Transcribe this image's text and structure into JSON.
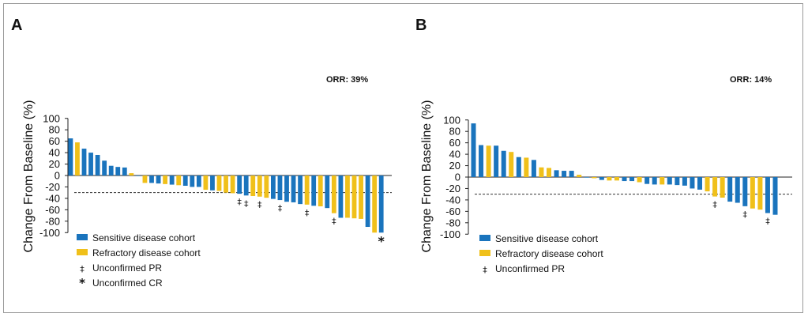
{
  "colors": {
    "sensitive": "#1A74BD",
    "refractory": "#F0C01A"
  },
  "chart_data": [
    {
      "type": "bar",
      "panel": "A",
      "ylabel": "Change From Baseline (%)",
      "ylim": [
        -100,
        100
      ],
      "yticks": [
        100,
        80,
        60,
        40,
        20,
        0,
        -20,
        -40,
        -60,
        -80,
        -100
      ],
      "annotation": "ORR: 39%",
      "reference_line": -30,
      "legend": [
        {
          "swatch": "sensitive",
          "label": "Sensitive disease cohort"
        },
        {
          "swatch": "refractory",
          "label": "Refractory disease cohort"
        },
        {
          "symbol": "‡",
          "label": "Unconfirmed PR"
        },
        {
          "symbol": "*",
          "label": "Unconfirmed CR"
        }
      ],
      "bars": [
        {
          "v": 65,
          "c": "sensitive"
        },
        {
          "v": 58,
          "c": "refractory"
        },
        {
          "v": 47,
          "c": "sensitive"
        },
        {
          "v": 40,
          "c": "sensitive"
        },
        {
          "v": 36,
          "c": "sensitive"
        },
        {
          "v": 26,
          "c": "sensitive"
        },
        {
          "v": 17,
          "c": "sensitive"
        },
        {
          "v": 15,
          "c": "sensitive"
        },
        {
          "v": 14,
          "c": "sensitive"
        },
        {
          "v": 4,
          "c": "refractory"
        },
        {
          "v": -1,
          "c": "sensitive"
        },
        {
          "v": -13,
          "c": "refractory"
        },
        {
          "v": -13,
          "c": "sensitive"
        },
        {
          "v": -14,
          "c": "sensitive"
        },
        {
          "v": -15,
          "c": "refractory"
        },
        {
          "v": -16,
          "c": "sensitive"
        },
        {
          "v": -17,
          "c": "refractory"
        },
        {
          "v": -18,
          "c": "sensitive"
        },
        {
          "v": -20,
          "c": "sensitive"
        },
        {
          "v": -20,
          "c": "sensitive"
        },
        {
          "v": -25,
          "c": "refractory"
        },
        {
          "v": -26,
          "c": "sensitive"
        },
        {
          "v": -27,
          "c": "refractory"
        },
        {
          "v": -30,
          "c": "refractory"
        },
        {
          "v": -31,
          "c": "refractory"
        },
        {
          "v": -32,
          "c": "sensitive",
          "mark": "‡"
        },
        {
          "v": -35,
          "c": "sensitive",
          "mark": "‡"
        },
        {
          "v": -36,
          "c": "refractory"
        },
        {
          "v": -37,
          "c": "refractory",
          "mark": "‡"
        },
        {
          "v": -39,
          "c": "refractory"
        },
        {
          "v": -41,
          "c": "sensitive"
        },
        {
          "v": -43,
          "c": "sensitive",
          "mark": "‡"
        },
        {
          "v": -46,
          "c": "sensitive"
        },
        {
          "v": -47,
          "c": "sensitive"
        },
        {
          "v": -50,
          "c": "sensitive"
        },
        {
          "v": -51,
          "c": "refractory",
          "mark": "‡"
        },
        {
          "v": -53,
          "c": "sensitive"
        },
        {
          "v": -54,
          "c": "refractory"
        },
        {
          "v": -57,
          "c": "sensitive"
        },
        {
          "v": -66,
          "c": "refractory",
          "mark": "‡"
        },
        {
          "v": -74,
          "c": "sensitive"
        },
        {
          "v": -74,
          "c": "refractory"
        },
        {
          "v": -75,
          "c": "refractory"
        },
        {
          "v": -76,
          "c": "refractory"
        },
        {
          "v": -90,
          "c": "sensitive"
        },
        {
          "v": -100,
          "c": "refractory"
        },
        {
          "v": -100,
          "c": "sensitive",
          "mark": "*"
        }
      ]
    },
    {
      "type": "bar",
      "panel": "B",
      "ylabel": "Change From Baseline (%)",
      "ylim": [
        -100,
        100
      ],
      "yticks": [
        100,
        80,
        60,
        40,
        20,
        0,
        -20,
        -40,
        -60,
        -80,
        -100
      ],
      "annotation": "ORR: 14%",
      "reference_line": -30,
      "legend": [
        {
          "swatch": "sensitive",
          "label": "Sensitive disease cohort"
        },
        {
          "swatch": "refractory",
          "label": "Refractory disease cohort"
        },
        {
          "symbol": "‡",
          "label": "Unconfirmed PR"
        }
      ],
      "bars": [
        {
          "v": 94,
          "c": "sensitive"
        },
        {
          "v": 56,
          "c": "sensitive"
        },
        {
          "v": 55,
          "c": "refractory"
        },
        {
          "v": 55,
          "c": "sensitive"
        },
        {
          "v": 46,
          "c": "sensitive"
        },
        {
          "v": 44,
          "c": "refractory"
        },
        {
          "v": 35,
          "c": "sensitive"
        },
        {
          "v": 34,
          "c": "refractory"
        },
        {
          "v": 30,
          "c": "sensitive"
        },
        {
          "v": 17,
          "c": "refractory"
        },
        {
          "v": 16,
          "c": "refractory"
        },
        {
          "v": 12,
          "c": "sensitive"
        },
        {
          "v": 11,
          "c": "sensitive"
        },
        {
          "v": 11,
          "c": "sensitive"
        },
        {
          "v": 4,
          "c": "refractory"
        },
        {
          "v": -1,
          "c": "sensitive"
        },
        {
          "v": -2,
          "c": "refractory"
        },
        {
          "v": -5,
          "c": "sensitive"
        },
        {
          "v": -6,
          "c": "refractory"
        },
        {
          "v": -6,
          "c": "refractory"
        },
        {
          "v": -7,
          "c": "sensitive"
        },
        {
          "v": -7,
          "c": "sensitive"
        },
        {
          "v": -9,
          "c": "refractory"
        },
        {
          "v": -12,
          "c": "sensitive"
        },
        {
          "v": -13,
          "c": "sensitive"
        },
        {
          "v": -13,
          "c": "refractory"
        },
        {
          "v": -13,
          "c": "sensitive"
        },
        {
          "v": -14,
          "c": "sensitive"
        },
        {
          "v": -15,
          "c": "sensitive"
        },
        {
          "v": -20,
          "c": "sensitive"
        },
        {
          "v": -22,
          "c": "sensitive"
        },
        {
          "v": -25,
          "c": "refractory"
        },
        {
          "v": -34,
          "c": "refractory",
          "mark": "‡"
        },
        {
          "v": -36,
          "c": "refractory"
        },
        {
          "v": -43,
          "c": "sensitive"
        },
        {
          "v": -45,
          "c": "sensitive"
        },
        {
          "v": -51,
          "c": "sensitive",
          "mark": "‡"
        },
        {
          "v": -55,
          "c": "refractory"
        },
        {
          "v": -57,
          "c": "refractory"
        },
        {
          "v": -63,
          "c": "sensitive",
          "mark": "‡"
        },
        {
          "v": -66,
          "c": "sensitive"
        }
      ]
    }
  ]
}
